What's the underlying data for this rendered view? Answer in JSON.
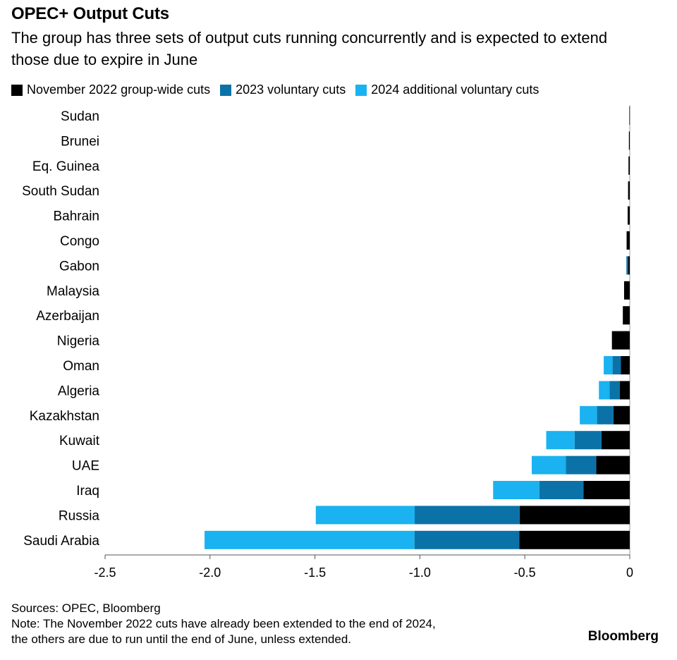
{
  "title": "OPEC+ Output Cuts",
  "subtitle": "The group has three sets of output cuts running concurrently and is expected to extend those due to expire in June",
  "legend": [
    {
      "label": "November 2022 group-wide cuts",
      "color": "#000000"
    },
    {
      "label": "2023 voluntary cuts",
      "color": "#0b72a8"
    },
    {
      "label": "2024 additional voluntary cuts",
      "color": "#1ab2f0"
    }
  ],
  "footer": {
    "sources": "Sources: OPEC, Bloomberg",
    "note_line1": "Note: The November 2022 cuts have already been extended to the end of 2024,",
    "note_line2": "the others are due to run until the end of June, unless extended."
  },
  "brand": "Bloomberg",
  "chart_data": {
    "type": "bar",
    "orientation": "horizontal",
    "stacked": true,
    "categories": [
      "Sudan",
      "Brunei",
      "Eq. Guinea",
      "South Sudan",
      "Bahrain",
      "Congo",
      "Gabon",
      "Malaysia",
      "Azerbaijan",
      "Nigeria",
      "Oman",
      "Algeria",
      "Kazakhstan",
      "Kuwait",
      "UAE",
      "Iraq",
      "Russia",
      "Saudi Arabia"
    ],
    "series": [
      {
        "name": "November 2022 group-wide cuts",
        "color": "#000000",
        "values": [
          -0.002,
          -0.004,
          -0.006,
          -0.008,
          -0.01,
          -0.015,
          -0.008,
          -0.027,
          -0.033,
          -0.085,
          -0.042,
          -0.048,
          -0.078,
          -0.135,
          -0.16,
          -0.22,
          -0.525,
          -0.526
        ]
      },
      {
        "name": "2023 voluntary cuts",
        "color": "#0b72a8",
        "values": [
          0,
          0,
          0,
          0,
          0,
          0,
          -0.008,
          0,
          0,
          0,
          -0.04,
          -0.048,
          -0.078,
          -0.128,
          -0.144,
          -0.211,
          -0.5,
          -0.5
        ]
      },
      {
        "name": "2024 additional voluntary cuts",
        "color": "#1ab2f0",
        "values": [
          0,
          0,
          0,
          0,
          0,
          0,
          0,
          0,
          0,
          0,
          -0.042,
          -0.051,
          -0.082,
          -0.135,
          -0.163,
          -0.22,
          -0.471,
          -1.0
        ]
      }
    ],
    "xlim": [
      -2.5,
      0
    ],
    "xticks": [
      -2.5,
      -2.0,
      -1.5,
      -1.0,
      -0.5,
      0
    ],
    "xtick_labels": [
      "-2.5",
      "-2.0",
      "-1.5",
      "-1.0",
      "-0.5",
      "0"
    ],
    "xlabel": "",
    "ylabel": "",
    "grid": false,
    "legend_position": "top"
  }
}
